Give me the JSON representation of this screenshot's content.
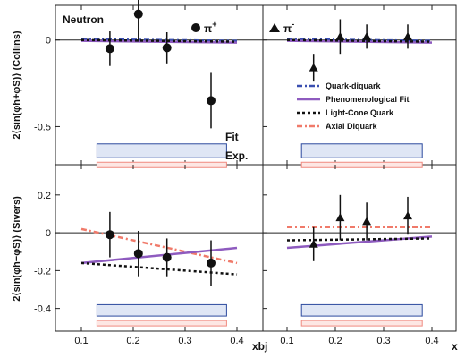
{
  "figure": {
    "panel_label_neutron": "Neutron",
    "pi_plus_label": "π",
    "pi_plus_sup": "+",
    "pi_minus_label": "π",
    "pi_minus_sup": "-",
    "fit_label": "Fit",
    "exp_label": "Exp.",
    "ylabel_top": "2⟨sin(φh+φS)⟩ (Collins)",
    "ylabel_bottom": "2⟨sin(φh−φS)⟩ (Sivers)",
    "xlabel_left": "xbj",
    "xlabel_right": "x"
  },
  "colors": {
    "data_marker": "#111111",
    "quark_diquark": "#3a4fb0",
    "phenomenological_fit": "#8e5bbf",
    "light_cone_quark": "#111111",
    "axial_diquark": "#f07a6a",
    "fit_band_outline": "#2c4a9e",
    "exp_band": "#f08a80"
  },
  "chart_data": [
    {
      "type": "scatter",
      "panel": "Collins π+ (neutron)",
      "x_ticks": [
        "0.1",
        "0.2",
        "0.3",
        "0.4"
      ],
      "y_ticks": [
        "0",
        "-0.5"
      ],
      "xlim": [
        0.05,
        0.45
      ],
      "ylim": [
        -0.72,
        0.2
      ],
      "points": [
        {
          "x": 0.155,
          "y": -0.05,
          "err": 0.1
        },
        {
          "x": 0.21,
          "y": 0.15,
          "err": 0.16
        },
        {
          "x": 0.265,
          "y": -0.045,
          "err": 0.09
        },
        {
          "x": 0.35,
          "y": -0.35,
          "err": 0.16
        }
      ]
    },
    {
      "type": "scatter",
      "panel": "Collins π−",
      "x_ticks": [
        "0.1",
        "0.2",
        "0.3",
        "0.4"
      ],
      "y_ticks": [],
      "xlim": [
        0.05,
        0.45
      ],
      "ylim": [
        -0.72,
        0.2
      ],
      "points": [
        {
          "x": 0.155,
          "y": -0.16,
          "err": 0.08
        },
        {
          "x": 0.21,
          "y": 0.02,
          "err": 0.1
        },
        {
          "x": 0.265,
          "y": 0.02,
          "err": 0.07
        },
        {
          "x": 0.35,
          "y": 0.02,
          "err": 0.07
        }
      ]
    },
    {
      "type": "scatter",
      "panel": "Sivers π+",
      "x_ticks": [
        "0.1",
        "0.2",
        "0.3",
        "0.4"
      ],
      "y_ticks": [
        "0.2",
        "0",
        "-0.2",
        "-0.4"
      ],
      "xlim": [
        0.05,
        0.45
      ],
      "ylim": [
        -0.52,
        0.36
      ],
      "points": [
        {
          "x": 0.155,
          "y": -0.01,
          "err": 0.12
        },
        {
          "x": 0.21,
          "y": -0.11,
          "err": 0.12
        },
        {
          "x": 0.265,
          "y": -0.13,
          "err": 0.1
        },
        {
          "x": 0.35,
          "y": -0.16,
          "err": 0.12
        }
      ]
    },
    {
      "type": "scatter",
      "panel": "Sivers π−",
      "x_ticks": [
        "0.1",
        "0.2",
        "0.3",
        "0.4"
      ],
      "y_ticks": [],
      "xlim": [
        0.05,
        0.45
      ],
      "ylim": [
        -0.52,
        0.36
      ],
      "points": [
        {
          "x": 0.155,
          "y": -0.06,
          "err": 0.09
        },
        {
          "x": 0.21,
          "y": 0.08,
          "err": 0.12
        },
        {
          "x": 0.265,
          "y": 0.06,
          "err": 0.1
        },
        {
          "x": 0.35,
          "y": 0.09,
          "err": 0.1
        }
      ]
    }
  ],
  "legend": [
    {
      "name": "Quark-diquark",
      "style": "dash-dot",
      "color": "#3a4fb0"
    },
    {
      "name": "Phenomenological Fit",
      "style": "solid",
      "color": "#8e5bbf"
    },
    {
      "name": "Light-Cone Quark",
      "style": "dotted",
      "color": "#111111"
    },
    {
      "name": "Axial Diquark",
      "style": "dash-dot",
      "color": "#f07a6a"
    }
  ]
}
